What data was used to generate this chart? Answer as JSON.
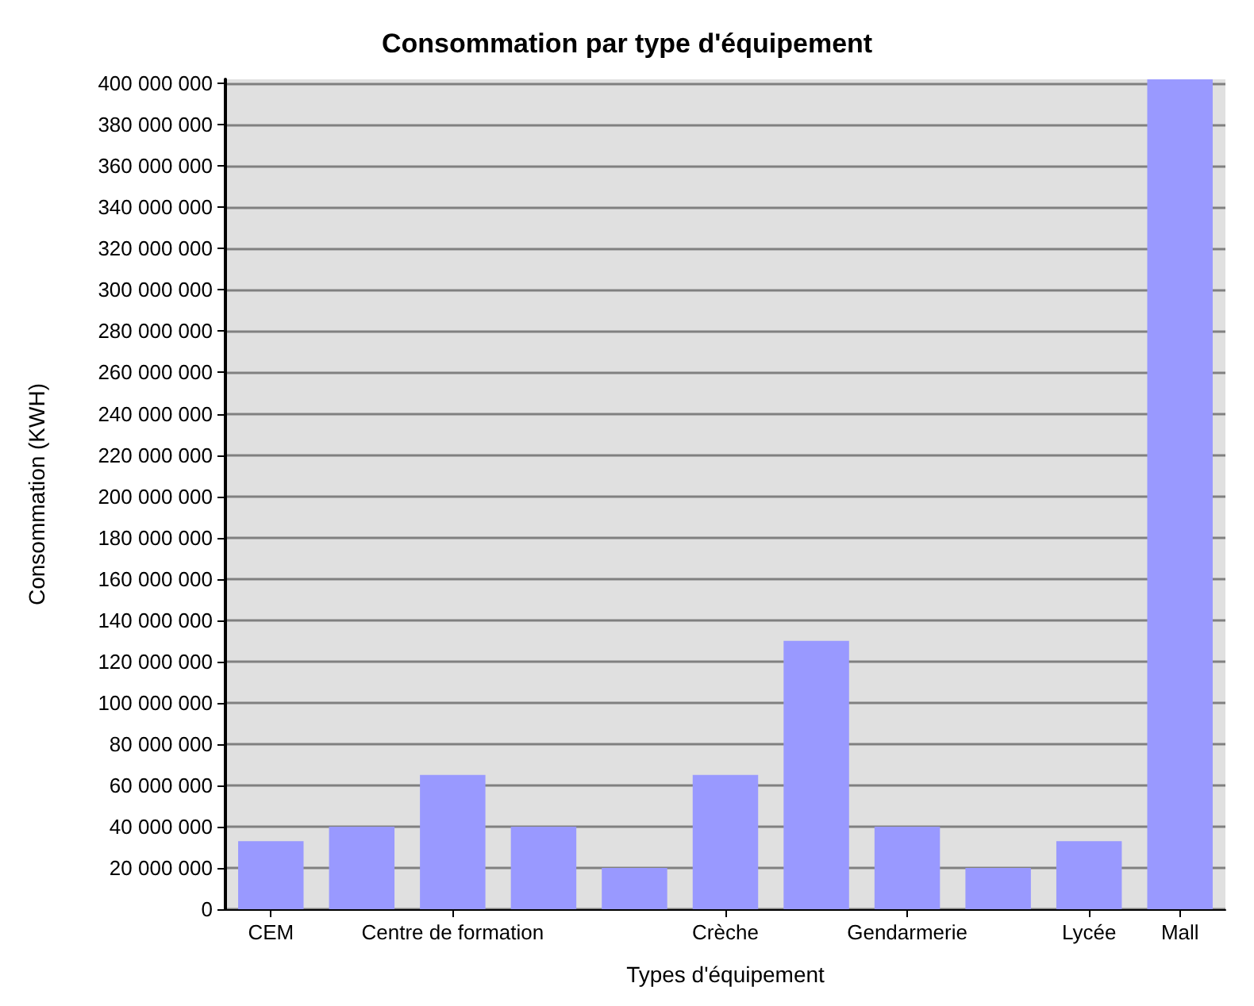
{
  "chart_data": {
    "type": "bar",
    "title": "Consommation par type d'équipement",
    "xlabel": "Types d'équipement",
    "ylabel": "Consommation (KWH)",
    "categories": [
      "CEM",
      null,
      "Centre de formation",
      null,
      null,
      "Crèche",
      null,
      "Gendarmerie",
      null,
      "Lycée",
      "Mall"
    ],
    "values": [
      33000000,
      40000000,
      65000000,
      40000000,
      20000000,
      65000000,
      130000000,
      40000000,
      20000000,
      33000000,
      402000000
    ],
    "color": "#9999ff",
    "ylim": [
      0,
      402000000
    ],
    "yticks": [
      0,
      20000000,
      40000000,
      60000000,
      80000000,
      100000000,
      120000000,
      140000000,
      160000000,
      180000000,
      200000000,
      220000000,
      240000000,
      260000000,
      280000000,
      300000000,
      320000000,
      340000000,
      360000000,
      380000000,
      400000000
    ],
    "grid": "y"
  }
}
